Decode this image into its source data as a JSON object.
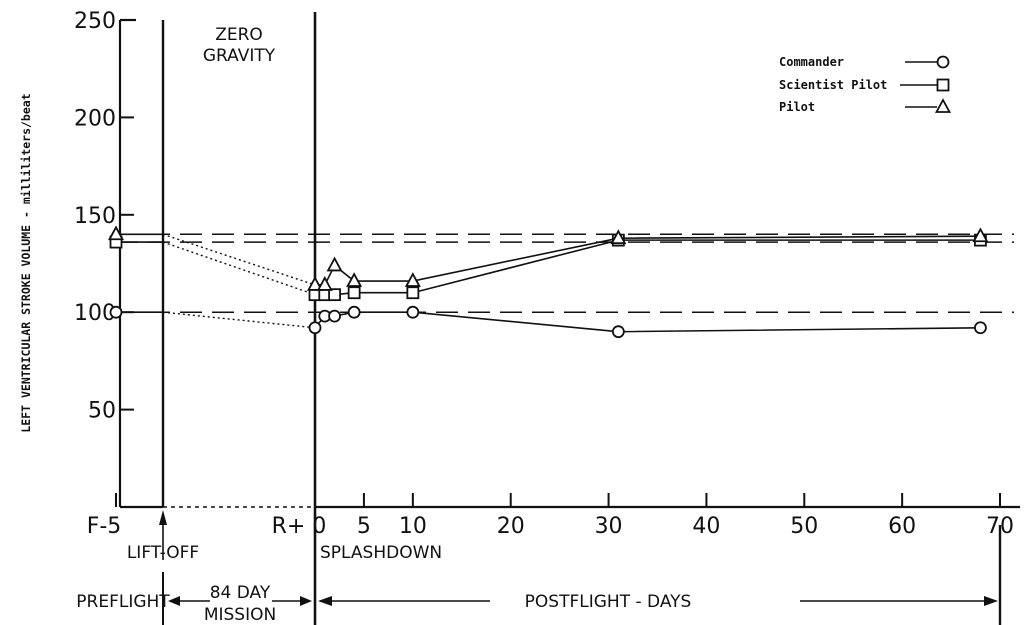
{
  "chart_data": {
    "type": "line",
    "ylabel": "LEFT VENTRICULAR STROKE VOLUME - milliliters/beat",
    "ylim": [
      0,
      250
    ],
    "y_ticks": [
      "50",
      "100",
      "150",
      "200",
      "250"
    ],
    "x_tick_labels": [
      "F-5",
      "R+ 0",
      "5",
      "10",
      "20",
      "30",
      "40",
      "50",
      "60",
      "70"
    ],
    "zero_gravity_label": [
      "ZERO",
      "GRAVITY"
    ],
    "liftoff_label": "LIFT-OFF",
    "splashdown_label": "SPLASHDOWN",
    "phases": {
      "preflight": "PREFLIGHT",
      "mission": [
        "84 DAY",
        "MISSION"
      ],
      "postflight": "POSTFLIGHT - DAYS"
    },
    "legend_position": "top-right",
    "series": [
      {
        "name": "Commander",
        "marker": "circle",
        "baseline": 100,
        "preflight": {
          "x": "F-5",
          "y": 100
        },
        "postflight": [
          {
            "x": 0,
            "y": 92
          },
          {
            "x": 1,
            "y": 98
          },
          {
            "x": 2,
            "y": 98
          },
          {
            "x": 4,
            "y": 100
          },
          {
            "x": 10,
            "y": 100
          },
          {
            "x": 31,
            "y": 90
          },
          {
            "x": 68,
            "y": 92
          }
        ]
      },
      {
        "name": "Scientist Pilot",
        "marker": "square",
        "baseline": 136,
        "preflight": {
          "x": "F-5",
          "y": 136
        },
        "postflight": [
          {
            "x": 0,
            "y": 109
          },
          {
            "x": 1,
            "y": 109
          },
          {
            "x": 2,
            "y": 109
          },
          {
            "x": 4,
            "y": 110
          },
          {
            "x": 10,
            "y": 110
          },
          {
            "x": 31,
            "y": 137
          },
          {
            "x": 68,
            "y": 137
          }
        ]
      },
      {
        "name": "Pilot",
        "marker": "triangle",
        "baseline": 140,
        "preflight": {
          "x": "F-5",
          "y": 140
        },
        "postflight": [
          {
            "x": 0,
            "y": 114
          },
          {
            "x": 1,
            "y": 114
          },
          {
            "x": 2,
            "y": 124
          },
          {
            "x": 4,
            "y": 116
          },
          {
            "x": 10,
            "y": 116
          },
          {
            "x": 31,
            "y": 138
          },
          {
            "x": 68,
            "y": 139
          }
        ]
      }
    ]
  }
}
